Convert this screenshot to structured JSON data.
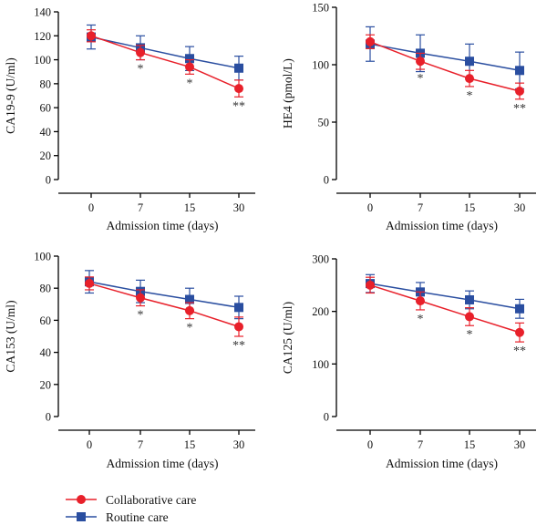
{
  "chart_data": [
    {
      "type": "line",
      "ylabel": "CA19-9 (U/ml)",
      "xlabel": "Admission time (days)",
      "categories": [
        "0",
        "7",
        "15",
        "30"
      ],
      "ylim": [
        0,
        140
      ],
      "yticks": [
        0,
        20,
        40,
        60,
        80,
        100,
        120,
        140
      ],
      "series": [
        {
          "name": "Collaborative care",
          "values": [
            120,
            106,
            94,
            76
          ],
          "errors": [
            5,
            6,
            6,
            7
          ]
        },
        {
          "name": "Routine care",
          "values": [
            119,
            110,
            101,
            93
          ],
          "errors": [
            10,
            10,
            10,
            10
          ]
        }
      ],
      "significance": [
        "",
        "*",
        "*",
        "**"
      ]
    },
    {
      "type": "line",
      "ylabel": "HE4 (pmol/L)",
      "xlabel": "Admission time (days)",
      "categories": [
        "0",
        "7",
        "15",
        "30"
      ],
      "ylim": [
        0,
        150
      ],
      "yticks": [
        0,
        50,
        100,
        150
      ],
      "series": [
        {
          "name": "Collaborative care",
          "values": [
            120,
            103,
            88,
            77
          ],
          "errors": [
            6,
            7,
            7,
            7
          ]
        },
        {
          "name": "Routine care",
          "values": [
            118,
            110,
            103,
            95
          ],
          "errors": [
            15,
            16,
            15,
            16
          ]
        }
      ],
      "significance": [
        "",
        "*",
        "*",
        "**"
      ]
    },
    {
      "type": "line",
      "ylabel": "CA153 (U/ml)",
      "xlabel": "Admission time (days)",
      "categories": [
        "0",
        "7",
        "15",
        "30"
      ],
      "ylim": [
        0,
        100
      ],
      "yticks": [
        0,
        20,
        40,
        60,
        80,
        100
      ],
      "series": [
        {
          "name": "Collaborative care",
          "values": [
            83,
            74,
            66,
            56
          ],
          "errors": [
            4,
            5,
            5,
            6
          ]
        },
        {
          "name": "Routine care",
          "values": [
            84,
            78,
            73,
            68
          ],
          "errors": [
            7,
            7,
            7,
            7
          ]
        }
      ],
      "significance": [
        "",
        "*",
        "*",
        "**"
      ]
    },
    {
      "type": "line",
      "ylabel": "CA125 (U/ml)",
      "xlabel": "Admission time (days)",
      "categories": [
        "0",
        "7",
        "15",
        "30"
      ],
      "ylim": [
        0,
        300
      ],
      "yticks": [
        0,
        100,
        200,
        300
      ],
      "series": [
        {
          "name": "Collaborative care",
          "values": [
            250,
            220,
            190,
            160
          ],
          "errors": [
            15,
            17,
            17,
            18
          ]
        },
        {
          "name": "Routine care",
          "values": [
            253,
            237,
            222,
            205
          ],
          "errors": [
            17,
            18,
            17,
            18
          ]
        }
      ],
      "significance": [
        "",
        "*",
        "*",
        "**"
      ]
    }
  ],
  "legend": [
    {
      "label": "Collaborative care",
      "color": "#e8202a",
      "marker": "circle"
    },
    {
      "label": "Routine care",
      "color": "#2a4ea0",
      "marker": "square"
    }
  ],
  "colors": {
    "collaborative": "#e8202a",
    "routine": "#2a4ea0",
    "error": "#e8202a"
  }
}
